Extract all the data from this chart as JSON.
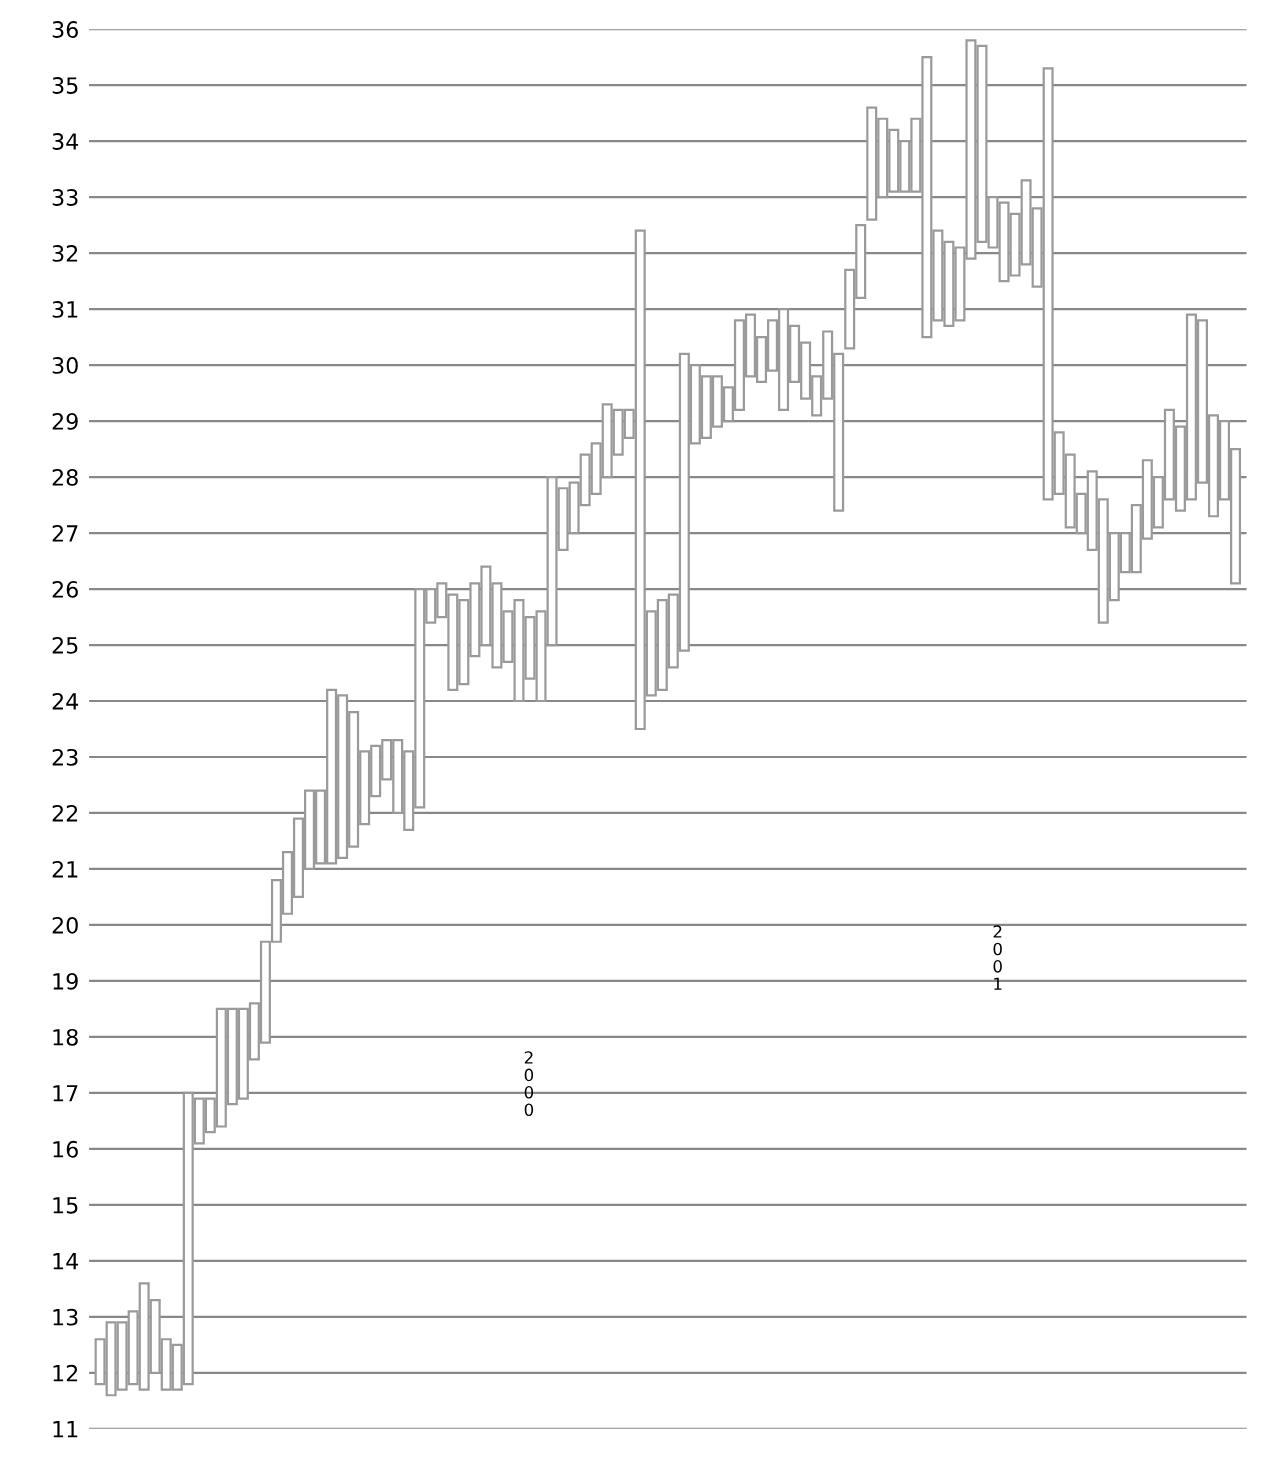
{
  "chart_data": {
    "type": "bar",
    "color": "#9a9a9a",
    "categories": [
      null,
      null,
      null,
      null,
      null,
      null,
      null,
      null,
      null,
      null,
      null,
      null,
      null,
      null,
      null,
      null,
      null,
      null,
      null,
      null,
      null,
      null,
      null,
      null,
      null,
      null,
      null,
      null,
      null,
      null,
      null,
      null,
      null,
      null,
      null,
      null,
      null,
      null,
      null,
      null,
      null,
      null,
      null,
      null,
      null,
      null,
      null,
      null,
      null,
      null,
      null,
      null,
      null,
      null,
      null,
      null,
      null,
      null,
      null,
      null,
      null,
      null,
      null,
      null,
      null,
      null,
      null,
      null,
      null,
      null,
      null,
      null,
      null,
      null,
      null,
      null,
      null,
      null,
      null,
      null,
      null,
      null,
      null,
      null,
      null,
      null,
      null,
      null,
      null,
      null,
      null,
      null,
      null,
      null,
      null,
      null,
      null,
      null,
      null,
      null,
      null,
      null,
      null,
      null
    ],
    "base": [
      11.8,
      11.6,
      11.7,
      11.8,
      11.7,
      12.0,
      11.7,
      11.7,
      11.8,
      16.1,
      16.3,
      16.4,
      16.8,
      16.9,
      17.6,
      17.9,
      19.7,
      20.2,
      20.5,
      21.0,
      21.1,
      21.1,
      21.2,
      21.4,
      21.8,
      22.3,
      22.6,
      22.0,
      21.7,
      22.1,
      25.4,
      25.5,
      24.2,
      24.3,
      24.8,
      25.0,
      24.6,
      24.7,
      24.0,
      24.4,
      24.0,
      25.0,
      26.7,
      27.0,
      27.5,
      27.7,
      28.0,
      28.4,
      28.7,
      23.5,
      24.1,
      24.2,
      24.6,
      24.9,
      28.6,
      28.7,
      28.9,
      29.0,
      29.2,
      29.8,
      29.7,
      29.9,
      29.2,
      29.7,
      29.4,
      29.1,
      29.4,
      27.4,
      30.3,
      31.2,
      32.6,
      33.0,
      33.1,
      33.1,
      33.1,
      30.5,
      30.8,
      30.7,
      30.8,
      31.9,
      32.2,
      32.1,
      31.5,
      31.6,
      31.8,
      31.4,
      27.6,
      27.7,
      27.1,
      27.0,
      26.7,
      25.4,
      25.8,
      26.3,
      26.3,
      26.9,
      27.1,
      27.6,
      27.4,
      27.6,
      27.9,
      27.3,
      27.6,
      26.1
    ],
    "values": [
      0.8,
      1.3,
      1.2,
      1.3,
      1.9,
      1.3,
      0.9,
      0.8,
      5.2,
      0.8,
      0.6,
      2.1,
      1.7,
      1.6,
      1.0,
      1.8,
      1.1,
      1.1,
      1.4,
      1.4,
      1.3,
      3.1,
      2.9,
      2.4,
      1.3,
      0.9,
      0.7,
      1.3,
      1.4,
      3.9,
      0.6,
      0.6,
      1.7,
      1.5,
      1.3,
      1.4,
      1.5,
      0.9,
      1.8,
      1.1,
      1.6,
      3.0,
      1.1,
      0.9,
      0.9,
      0.9,
      1.3,
      0.8,
      0.5,
      8.9,
      1.5,
      1.6,
      1.3,
      5.3,
      1.4,
      1.1,
      0.9,
      0.6,
      1.6,
      1.1,
      0.8,
      0.9,
      1.8,
      1.0,
      1.0,
      0.7,
      1.2,
      2.8,
      1.4,
      1.3,
      2.0,
      1.4,
      1.1,
      0.9,
      1.3,
      5.0,
      1.6,
      1.5,
      1.3,
      3.9,
      3.5,
      0.9,
      1.4,
      1.1,
      1.5,
      1.4,
      7.7,
      1.1,
      1.3,
      0.7,
      1.4,
      2.2,
      1.2,
      0.7,
      1.2,
      1.4,
      0.9,
      1.6,
      1.5,
      3.3,
      2.9,
      1.8,
      1.4,
      2.4
    ],
    "ylim": [
      11,
      36
    ],
    "yticks": [
      11,
      12,
      13,
      14,
      15,
      16,
      17,
      18,
      19,
      20,
      21,
      22,
      23,
      24,
      25,
      26,
      27,
      28,
      29,
      30,
      31,
      32,
      33,
      34,
      35,
      36
    ],
    "grid": "y",
    "tick_labels": "y",
    "annotations": [
      "2000",
      "2001"
    ]
  }
}
